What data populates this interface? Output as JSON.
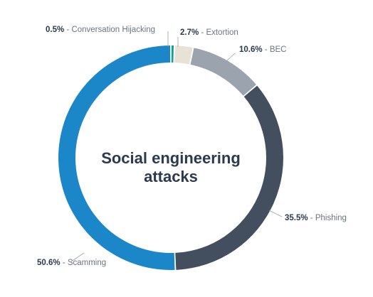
{
  "chart_data": {
    "type": "pie",
    "variant": "donut",
    "title_lines": [
      "Social engineering",
      "attacks"
    ],
    "unit": "%",
    "slices": [
      {
        "name": "Conversation Hijacking",
        "value": 0.5,
        "label": "0.5%",
        "color": "#1a9c8f"
      },
      {
        "name": "Extortion",
        "value": 2.7,
        "label": "2.7%",
        "color": "#e7e2d6"
      },
      {
        "name": "BEC",
        "value": 10.6,
        "label": "10.6%",
        "color": "#9aa3ae"
      },
      {
        "name": "Phishing",
        "value": 35.5,
        "label": "35.5%",
        "color": "#434f5e"
      },
      {
        "name": "Scamming",
        "value": 50.6,
        "label": "50.6%",
        "color": "#1b87c9"
      }
    ],
    "legend": "none",
    "label_placement": "outside"
  }
}
